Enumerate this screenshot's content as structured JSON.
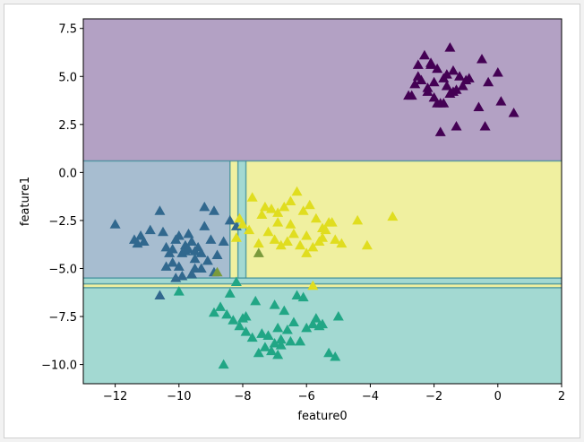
{
  "chart_data": {
    "type": "scatter",
    "title": "",
    "xlabel": "feature0",
    "ylabel": "feature1",
    "xlim": [
      -13,
      2
    ],
    "ylim": [
      -11,
      8
    ],
    "xticks": [
      -12,
      -10,
      -8,
      -6,
      -4,
      -2,
      0,
      2
    ],
    "xtick_labels": [
      "−12",
      "−10",
      "−8",
      "−6",
      "−4",
      "−2",
      "0",
      "2"
    ],
    "yticks": [
      7.5,
      5.0,
      2.5,
      0.0,
      -2.5,
      -5.0,
      -7.5,
      -10.0
    ],
    "ytick_labels": [
      "7.5",
      "5.0",
      "2.5",
      "0.0",
      "−2.5",
      "−5.0",
      "−7.5",
      "−10.0"
    ],
    "grid": false,
    "marker": "triangle",
    "decision_regions": [
      {
        "class": 0,
        "color": "#b3a1c4",
        "x": [
          -13,
          2
        ],
        "y": [
          0.6,
          8
        ]
      },
      {
        "class": 1,
        "color": "#a7bdd0",
        "x": [
          -13,
          -8.4
        ],
        "y": [
          -5.5,
          0.6
        ]
      },
      {
        "class": 3,
        "color": "#f0f0a0",
        "x": [
          -8.4,
          -8.15
        ],
        "y": [
          -5.5,
          0.6
        ]
      },
      {
        "class": 2,
        "color": "#a3d9d2",
        "x": [
          -8.15,
          -7.9
        ],
        "y": [
          -5.5,
          0.6
        ]
      },
      {
        "class": 3,
        "color": "#f0f0a0",
        "x": [
          -7.9,
          2
        ],
        "y": [
          -5.5,
          0.6
        ]
      },
      {
        "class": 2,
        "color": "#a3d9d2",
        "x": [
          -13,
          2
        ],
        "y": [
          -5.8,
          -5.5
        ]
      },
      {
        "class": 3,
        "color": "#f0f0a0",
        "x": [
          -13,
          2
        ],
        "y": [
          -6.0,
          -5.8
        ]
      },
      {
        "class": 2,
        "color": "#a3d9d2",
        "x": [
          -13,
          2
        ],
        "y": [
          -11,
          -6.0
        ]
      }
    ],
    "boundary_color": "#3f8f9a",
    "series": [
      {
        "class": 0,
        "color": "#440154",
        "x": [
          -2.3,
          -2.5,
          -1.9,
          -2.1,
          -1.5,
          -1.2,
          -1.7,
          -2.0,
          -1.3,
          -1.6,
          -2.7,
          -1.8,
          -1.4,
          -2.2,
          -2.6,
          -0.5,
          -0.3,
          0.0,
          -1.0,
          -0.6,
          -0.4,
          -1.3,
          -1.5,
          -2.0,
          -1.7,
          -2.2,
          -2.4,
          -2.8,
          -1.1,
          -0.9,
          -1.9,
          -1.6,
          -1.4,
          -2.5,
          0.1,
          0.5,
          -1.8,
          -2.1
        ],
        "y": [
          6.1,
          5.6,
          5.4,
          5.7,
          6.5,
          5.0,
          4.9,
          4.7,
          4.3,
          4.5,
          4.0,
          3.6,
          4.2,
          4.4,
          4.6,
          5.9,
          4.7,
          5.2,
          4.8,
          3.4,
          2.4,
          2.4,
          4.1,
          3.9,
          3.6,
          4.2,
          4.8,
          4.0,
          4.5,
          4.9,
          3.6,
          5.1,
          5.3,
          5.0,
          3.7,
          3.1,
          2.1,
          5.6
        ]
      },
      {
        "class": 1,
        "color": "#31688e",
        "x": [
          -12.0,
          -11.4,
          -11.2,
          -11.1,
          -10.9,
          -10.6,
          -10.5,
          -10.4,
          -10.3,
          -10.1,
          -10.0,
          -10.2,
          -9.9,
          -9.8,
          -9.7,
          -9.6,
          -9.5,
          -9.4,
          -9.3,
          -9.2,
          -9.1,
          -9.0,
          -8.9,
          -8.8,
          -8.6,
          -8.4,
          -8.2,
          -9.5,
          -9.8,
          -10.2,
          -10.0,
          -9.6,
          -9.3,
          -9.9,
          -10.1,
          -9.7,
          -10.4,
          -10.6,
          -11.3,
          -9.5,
          -9.2,
          -8.9
        ],
        "y": [
          -2.7,
          -3.5,
          -3.3,
          -3.6,
          -3.0,
          -2.0,
          -3.1,
          -3.9,
          -4.2,
          -3.5,
          -3.3,
          -4.0,
          -4.2,
          -3.8,
          -3.2,
          -3.6,
          -4.5,
          -3.9,
          -4.2,
          -2.8,
          -4.6,
          -3.5,
          -2.0,
          -4.3,
          -3.6,
          -2.5,
          -2.8,
          -5.0,
          -4.1,
          -4.7,
          -4.9,
          -5.3,
          -5.0,
          -5.4,
          -5.5,
          -4.0,
          -4.9,
          -6.4,
          -3.7,
          -4.1,
          -1.8,
          -5.2
        ],
        "_note": ""
      },
      {
        "class": 2,
        "color": "#21a685",
        "x": [
          -8.2,
          -8.4,
          -7.9,
          -8.0,
          -7.6,
          -7.4,
          -7.2,
          -7.0,
          -6.8,
          -6.6,
          -6.4,
          -6.9,
          -7.1,
          -7.3,
          -7.5,
          -7.7,
          -7.9,
          -8.1,
          -8.3,
          -8.5,
          -8.7,
          -8.9,
          -6.2,
          -6.0,
          -5.8,
          -5.7,
          -5.5,
          -5.3,
          -5.1,
          -5.0,
          -6.3,
          -6.7,
          -7.0,
          -7.2,
          -7.4,
          -6.9,
          -6.5,
          -6.8,
          -8.6,
          -10.0,
          -6.1,
          -5.6
        ],
        "y": [
          -5.7,
          -6.3,
          -7.5,
          -7.6,
          -6.7,
          -8.4,
          -8.5,
          -8.9,
          -8.7,
          -8.2,
          -7.8,
          -9.5,
          -9.3,
          -9.1,
          -9.4,
          -8.6,
          -8.3,
          -8.0,
          -7.7,
          -7.4,
          -7.0,
          -7.3,
          -8.8,
          -8.1,
          -7.9,
          -7.6,
          -7.9,
          -9.4,
          -9.6,
          -7.5,
          -6.4,
          -7.2,
          -6.9,
          -8.5,
          -8.4,
          -8.1,
          -8.8,
          -9.0,
          -10.0,
          -6.2,
          -6.5,
          -8.0
        ],
        "_note": ""
      },
      {
        "class": 3,
        "color": "#e0dd1f",
        "x": [
          -7.7,
          -7.4,
          -7.1,
          -6.9,
          -6.7,
          -6.5,
          -6.3,
          -6.1,
          -5.9,
          -5.7,
          -5.5,
          -5.3,
          -5.1,
          -6.4,
          -6.6,
          -6.8,
          -7.0,
          -7.2,
          -7.5,
          -7.8,
          -8.1,
          -8.0,
          -6.0,
          -5.8,
          -5.6,
          -5.4,
          -5.2,
          -4.9,
          -4.4,
          -4.1,
          -3.3,
          -6.2,
          -6.9,
          -7.3,
          -6.5,
          -5.5,
          -8.2,
          -5.8,
          -6.0
        ],
        "y": [
          -1.3,
          -2.2,
          -1.9,
          -2.6,
          -1.8,
          -1.5,
          -1.0,
          -2.0,
          -1.7,
          -2.4,
          -2.9,
          -2.6,
          -3.5,
          -3.2,
          -3.6,
          -3.8,
          -3.5,
          -3.1,
          -3.7,
          -3.0,
          -2.4,
          -2.7,
          -3.3,
          -3.9,
          -3.6,
          -3.0,
          -2.6,
          -3.7,
          -2.5,
          -3.8,
          -2.3,
          -3.8,
          -2.1,
          -1.8,
          -2.7,
          -3.4,
          -3.4,
          -5.9,
          -4.2
        ]
      },
      {
        "class": 3,
        "color": "#7a9a3c",
        "x": [
          -7.5,
          -8.8
        ],
        "y": [
          -4.2,
          -5.2
        ]
      }
    ]
  }
}
